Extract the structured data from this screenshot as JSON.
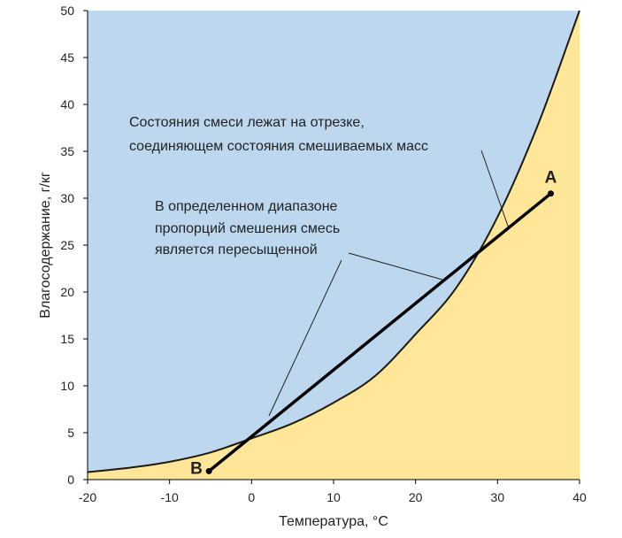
{
  "chart_data": {
    "type": "line",
    "title": "",
    "xlabel": "Температура, °C",
    "ylabel": "Влагосодержание, г/кг",
    "xlim": [
      -20,
      40
    ],
    "ylim": [
      0,
      50
    ],
    "x_ticks": [
      "-20",
      "-10",
      "0",
      "10",
      "20",
      "30",
      "40"
    ],
    "y_ticks": [
      "0",
      "5",
      "10",
      "15",
      "20",
      "25",
      "30",
      "35",
      "40",
      "45",
      "50"
    ],
    "grid": false,
    "colors": {
      "supersaturated_region": "#bdd7ee",
      "unsaturated_region": "#ffe699",
      "curve": "#1a1a1a",
      "mixing_line": "#000000"
    },
    "series": [
      {
        "kind": "saturation-curve",
        "x": [
          -20,
          -15,
          -10,
          -5,
          0,
          5,
          10,
          15,
          20,
          25,
          30,
          35,
          40
        ],
        "y": [
          0.8,
          1.25,
          1.9,
          2.9,
          4.4,
          6.0,
          8.2,
          11.0,
          15.5,
          20.5,
          28.0,
          38.0,
          50.0
        ]
      },
      {
        "kind": "mixing-line",
        "x": [
          -5.2,
          36.5
        ],
        "y": [
          0.9,
          30.5
        ]
      }
    ],
    "points": [
      {
        "label": "A",
        "x": 36.5,
        "y": 30.5
      },
      {
        "label": "B",
        "x": -5.2,
        "y": 0.9
      }
    ],
    "annotations": [
      {
        "lines": [
          "Состояния смеси лежат на отрезке,",
          "соединяющем состояния смешиваемых масс"
        ]
      },
      {
        "lines": [
          "В определенном диапазоне",
          "пропорций смешения смесь",
          "является пересыщенной"
        ]
      }
    ]
  }
}
